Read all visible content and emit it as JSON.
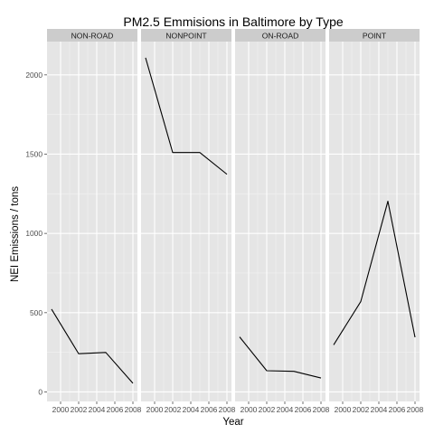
{
  "chart_data": {
    "type": "line",
    "title": "PM2.5 Emmisions in Baltimore by Type",
    "xlabel": "Year",
    "ylabel": "NEI Emissions / tons",
    "x": [
      1999,
      2002,
      2005,
      2008
    ],
    "x_ticks": [
      2000,
      2002,
      2004,
      2006,
      2008
    ],
    "x_tick_labels": [
      "2000",
      "2002",
      "2004",
      "2006",
      "2008"
    ],
    "xlim": [
      1998.5,
      2008.5
    ],
    "y_ticks": [
      0,
      500,
      1000,
      1500,
      2000
    ],
    "y_tick_labels": [
      "0",
      "500",
      "1000",
      "1500",
      "2000"
    ],
    "ylim": [
      -60,
      2210
    ],
    "grid": true,
    "facet_by": "type",
    "panels": [
      {
        "name": "NON-ROAD",
        "values": [
          522,
          241,
          249,
          55
        ]
      },
      {
        "name": "NONPOINT",
        "values": [
          2108,
          1510,
          1510,
          1373
        ]
      },
      {
        "name": "ON-ROAD",
        "values": [
          347,
          134,
          130,
          88
        ]
      },
      {
        "name": "POINT",
        "values": [
          297,
          570,
          1203,
          345
        ]
      }
    ],
    "colors": {
      "panel_background": "#e5e5e5",
      "grid_major": "#ffffff",
      "grid_minor": "#f2f2f2",
      "strip_background": "#cccccc",
      "line": "#000000",
      "tick_text": "#4d4d4d",
      "tick_mark": "#4d4d4d"
    }
  }
}
